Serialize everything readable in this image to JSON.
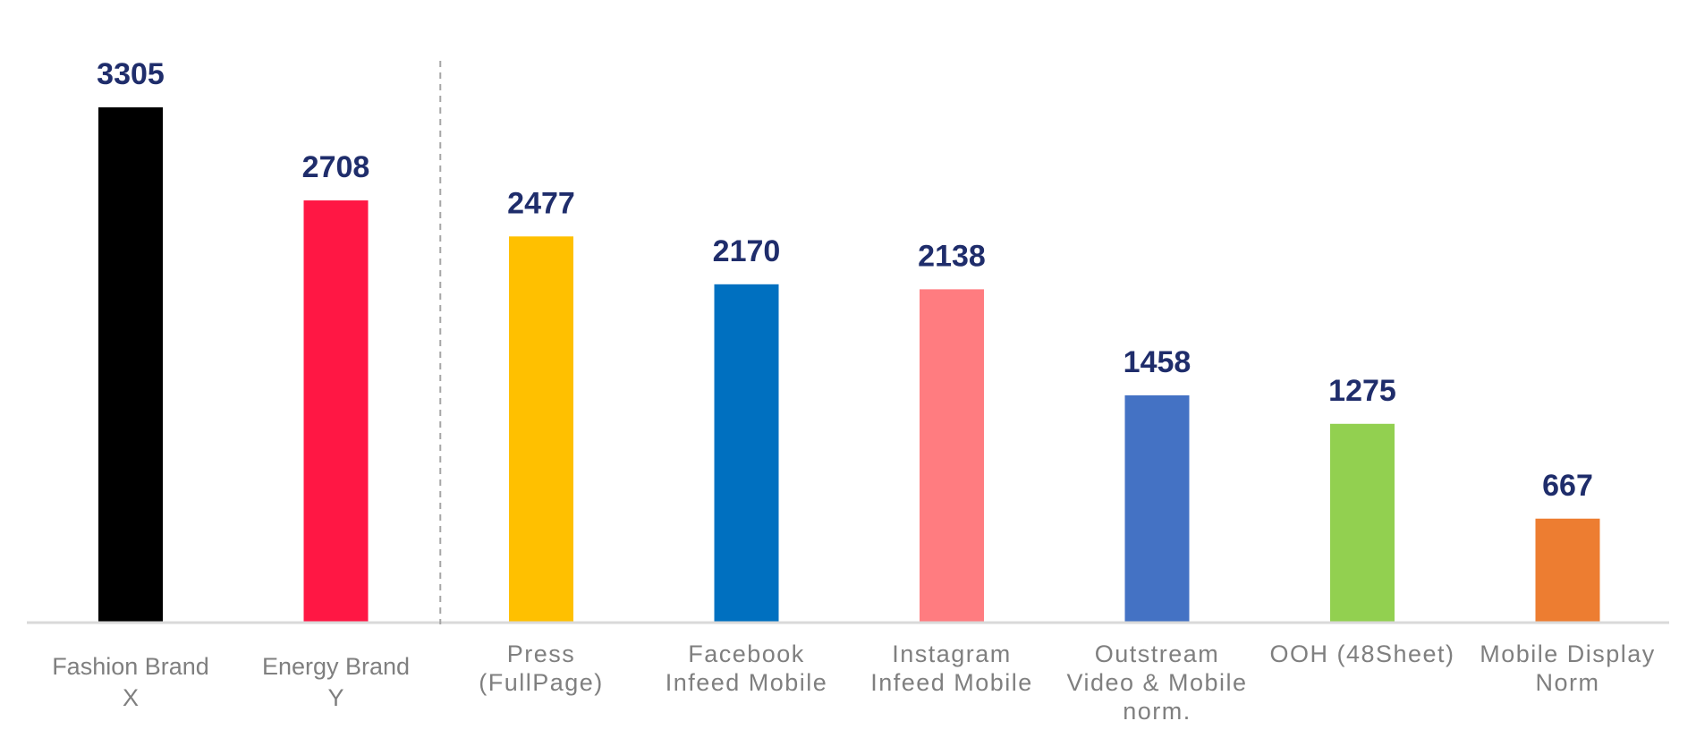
{
  "chart_data": {
    "type": "bar",
    "categories": [
      [
        "Fashion Brand",
        "X"
      ],
      [
        "Energy Brand",
        "Y"
      ],
      [
        "Press",
        "(FullPage)"
      ],
      [
        "Facebook",
        "Infeed Mobile"
      ],
      [
        "Instagram",
        "Infeed Mobile"
      ],
      [
        "Outstream",
        "Video & Mobile",
        "norm."
      ],
      [
        "OOH (48Sheet)"
      ],
      [
        "Mobile Display",
        "Norm"
      ]
    ],
    "values": [
      3305,
      2708,
      2477,
      2170,
      2138,
      1458,
      1275,
      667
    ],
    "value_labels": [
      "3305",
      "2708",
      "2477",
      "2170",
      "2138",
      "1458",
      "1275",
      "667"
    ],
    "colors": [
      "#000000",
      "#ff1744",
      "#ffc000",
      "#0070c0",
      "#ff7c80",
      "#4472c4",
      "#92d050",
      "#ed7d31"
    ],
    "ylim": [
      0,
      3305
    ],
    "grid": false,
    "separator_after_index": 1,
    "colors_meta": {
      "value_label_color": "#1f2d6b",
      "category_label_color": "#7f7f7f",
      "axis_color": "#d9d9d9",
      "separator_color": "#a6a6a6"
    }
  }
}
